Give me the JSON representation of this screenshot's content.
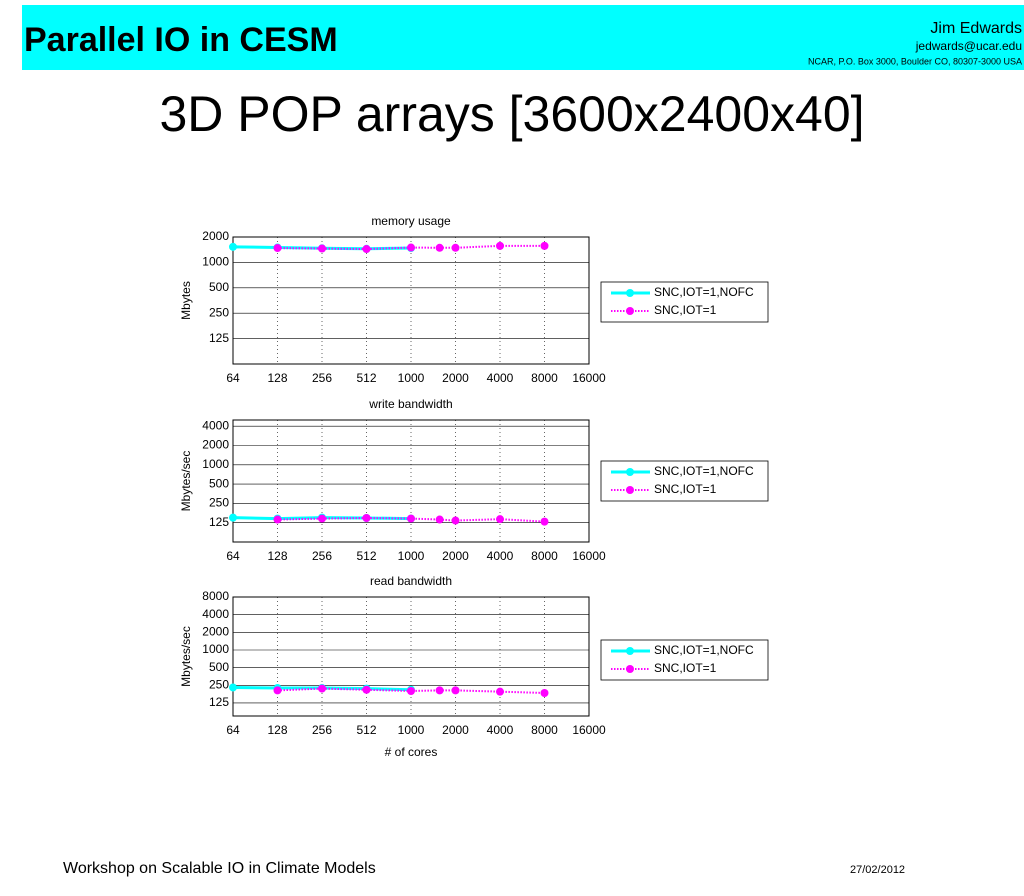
{
  "header": {
    "title": "Parallel IO in CESM",
    "author": "Jim Edwards",
    "email": "jedwards@ucar.edu",
    "address": "NCAR, P.O. Box 3000, Boulder CO, 80307-3000 USA"
  },
  "slide_title": "3D POP arrays [3600x2400x40]",
  "footer": {
    "left": "Workshop on Scalable IO in Climate Models",
    "date": "27/02/2012"
  },
  "chart_data": [
    {
      "type": "line",
      "title": "memory usage",
      "ylabel": "Mbytes",
      "log_x": true,
      "log_y": true,
      "grid": true,
      "xlim": [
        64,
        16384
      ],
      "xticks": [
        64,
        128,
        256,
        512,
        {
          "value": 1024,
          "label": "1000"
        },
        {
          "value": 2048,
          "label": "2000"
        },
        {
          "value": 4096,
          "label": "4000"
        },
        {
          "value": 8192,
          "label": "8000"
        },
        {
          "value": 16384,
          "label": "16000"
        }
      ],
      "ylim": [
        62.5,
        2000
      ],
      "yticks": [
        125,
        250,
        500,
        1000,
        2000
      ],
      "series": [
        {
          "name": "SNC,IOT=1,NOFC",
          "color": "#00ffff",
          "line_style": "solid",
          "x": [
            64,
            128,
            256,
            512,
            1024
          ],
          "values": [
            1530,
            1500,
            1470,
            1450,
            1480
          ]
        },
        {
          "name": "SNC,IOT=1",
          "color": "#ff00ff",
          "line_style": "dotted",
          "x": [
            128,
            256,
            512,
            1024,
            1600,
            2048,
            4096,
            8192
          ],
          "values": [
            1480,
            1460,
            1440,
            1500,
            1490,
            1490,
            1570,
            1570
          ]
        }
      ]
    },
    {
      "type": "line",
      "title": "write bandwidth",
      "ylabel": "Mbytes/sec",
      "log_x": true,
      "log_y": true,
      "grid": true,
      "xlim": [
        64,
        16384
      ],
      "xticks": [
        64,
        128,
        256,
        512,
        {
          "value": 1024,
          "label": "1000"
        },
        {
          "value": 2048,
          "label": "2000"
        },
        {
          "value": 4096,
          "label": "4000"
        },
        {
          "value": 8192,
          "label": "8000"
        },
        {
          "value": 16384,
          "label": "16000"
        }
      ],
      "ylim": [
        62.5,
        5000
      ],
      "yticks": [
        125,
        250,
        500,
        1000,
        2000,
        4000
      ],
      "series": [
        {
          "name": "SNC,IOT=1,NOFC",
          "color": "#00ffff",
          "line_style": "solid",
          "x": [
            64,
            128,
            256,
            512,
            1024
          ],
          "values": [
            150,
            145,
            150,
            148,
            145
          ]
        },
        {
          "name": "SNC,IOT=1",
          "color": "#ff00ff",
          "line_style": "dotted",
          "x": [
            128,
            256,
            512,
            1024,
            1600,
            2048,
            4096,
            8192
          ],
          "values": [
            140,
            145,
            148,
            145,
            140,
            135,
            142,
            130
          ]
        }
      ]
    },
    {
      "type": "line",
      "title": "read bandwidth",
      "ylabel": "Mbytes/sec",
      "xlabel": "# of cores",
      "log_x": true,
      "log_y": true,
      "grid": true,
      "xlim": [
        64,
        16384
      ],
      "xticks": [
        64,
        128,
        256,
        512,
        {
          "value": 1024,
          "label": "1000"
        },
        {
          "value": 2048,
          "label": "2000"
        },
        {
          "value": 4096,
          "label": "4000"
        },
        {
          "value": 8192,
          "label": "8000"
        },
        {
          "value": 16384,
          "label": "16000"
        }
      ],
      "ylim": [
        75,
        8000
      ],
      "yticks": [
        125,
        250,
        500,
        1000,
        2000,
        4000,
        8000
      ],
      "series": [
        {
          "name": "SNC,IOT=1,NOFC",
          "color": "#00ffff",
          "line_style": "solid",
          "x": [
            64,
            128,
            256,
            512,
            1024
          ],
          "values": [
            230,
            225,
            225,
            220,
            210
          ]
        },
        {
          "name": "SNC,IOT=1",
          "color": "#ff00ff",
          "line_style": "dotted",
          "x": [
            128,
            256,
            512,
            1024,
            1600,
            2048,
            4096,
            8192
          ],
          "values": [
            205,
            220,
            210,
            200,
            205,
            205,
            195,
            185
          ]
        }
      ]
    }
  ]
}
